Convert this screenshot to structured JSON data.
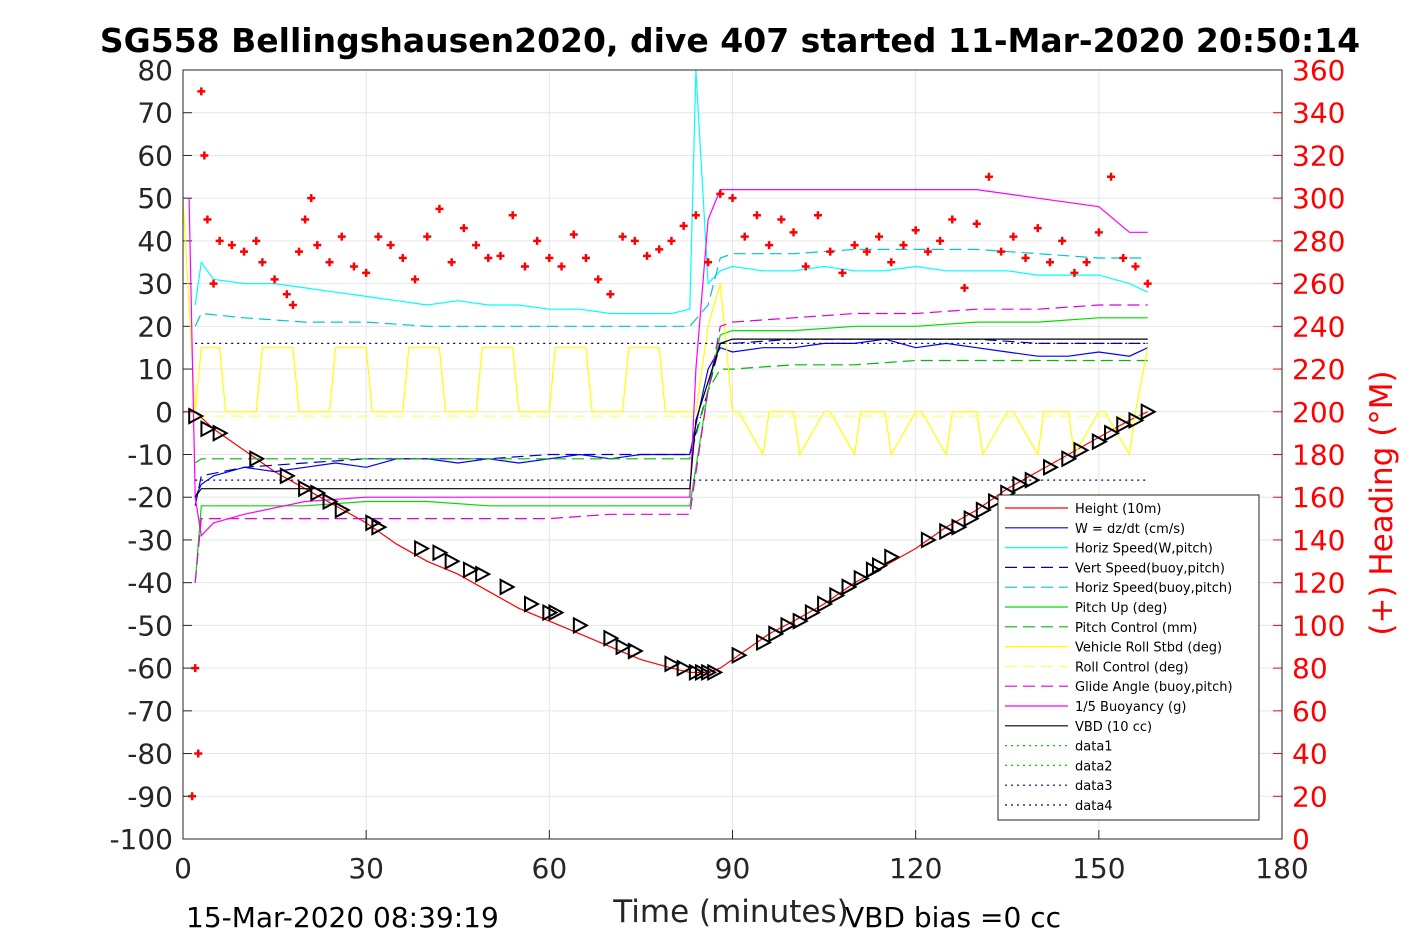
{
  "chart_data": {
    "type": "line",
    "title": "SG558 Bellingshausen2020, dive 407 started 11-Mar-2020 20:50:14",
    "xlabel": "Time (minutes)",
    "ylabel_right": "(+) Heading (°M)",
    "xlim": [
      0,
      180
    ],
    "ylim": [
      -100,
      80
    ],
    "ylim_right": [
      0,
      360
    ],
    "x_ticks": [
      "0",
      "30",
      "60",
      "90",
      "120",
      "150",
      "180"
    ],
    "y_ticks": [
      "80",
      "70",
      "60",
      "50",
      "40",
      "30",
      "20",
      "10",
      "0",
      "-10",
      "-20",
      "-30",
      "-40",
      "-50",
      "-60",
      "-70",
      "-80",
      "-90",
      "-100"
    ],
    "y_ticks_right": [
      "360",
      "340",
      "320",
      "300",
      "280",
      "260",
      "240",
      "220",
      "200",
      "180",
      "160",
      "140",
      "120",
      "100",
      "80",
      "60",
      "40",
      "20",
      "0"
    ],
    "grid": true,
    "legend_position": "lower-right",
    "footer_left": "15-Mar-2020 08:39:19",
    "footer_right": "VBD bias =0 cc",
    "series": [
      {
        "name": "Height (10m)",
        "color": "#ff0000",
        "style": "solid",
        "x": [
          0,
          2,
          5,
          10,
          15,
          20,
          25,
          30,
          35,
          40,
          45,
          50,
          55,
          60,
          65,
          70,
          75,
          80,
          83,
          86,
          88,
          92,
          96,
          100,
          105,
          110,
          115,
          120,
          125,
          130,
          135,
          140,
          145,
          150,
          155,
          158
        ],
        "y": [
          0,
          0,
          -4,
          -9,
          -14,
          -18,
          -22,
          -26,
          -31,
          -35,
          -38,
          -42,
          -46,
          -49,
          -52,
          -55,
          -58,
          -60,
          -61,
          -61,
          -60,
          -56,
          -52,
          -49,
          -45,
          -40,
          -36,
          -32,
          -27,
          -23,
          -18,
          -14,
          -10,
          -6,
          -2,
          0
        ]
      },
      {
        "name": "W = dz/dt (cm/s)",
        "color": "#0000ff",
        "style": "solid",
        "x": [
          2,
          3,
          5,
          10,
          15,
          20,
          25,
          30,
          35,
          40,
          45,
          50,
          55,
          60,
          65,
          70,
          75,
          80,
          83,
          84,
          86,
          88,
          90,
          95,
          100,
          105,
          110,
          115,
          120,
          125,
          130,
          135,
          140,
          145,
          150,
          155,
          158
        ],
        "y": [
          -20,
          -17,
          -15,
          -13,
          -14,
          -13,
          -12,
          -13,
          -11,
          -11,
          -12,
          -11,
          -12,
          -11,
          -10,
          -11,
          -10,
          -10,
          -10,
          -3,
          10,
          15,
          14,
          15,
          15,
          16,
          16,
          17,
          15,
          16,
          15,
          14,
          13,
          13,
          14,
          13,
          15
        ]
      },
      {
        "name": "Horiz Speed(W,pitch)",
        "color": "#00ffff",
        "style": "solid",
        "x": [
          2,
          3,
          5,
          10,
          15,
          20,
          25,
          30,
          35,
          40,
          45,
          50,
          55,
          60,
          65,
          70,
          75,
          80,
          83,
          84,
          86,
          88,
          90,
          95,
          100,
          105,
          110,
          115,
          120,
          125,
          130,
          135,
          140,
          145,
          150,
          155,
          158
        ],
        "y": [
          25,
          35,
          31,
          30,
          30,
          29,
          28,
          27,
          26,
          25,
          26,
          25,
          25,
          24,
          24,
          23,
          23,
          23,
          24,
          80,
          30,
          33,
          34,
          33,
          33,
          34,
          33,
          33,
          34,
          33,
          33,
          33,
          32,
          32,
          32,
          30,
          28
        ]
      },
      {
        "name": "Vert Speed(buoy,pitch)",
        "color": "#0000c0",
        "style": "dashed",
        "x": [
          2,
          3,
          10,
          20,
          30,
          40,
          50,
          60,
          70,
          80,
          83,
          86,
          88,
          90,
          100,
          110,
          120,
          130,
          140,
          150,
          158
        ],
        "y": [
          -22,
          -15,
          -13,
          -12,
          -11,
          -11,
          -11,
          -10,
          -10,
          -10,
          -10,
          5,
          16,
          16,
          17,
          17,
          17,
          17,
          16,
          16,
          16
        ]
      },
      {
        "name": "Horiz Speed(buoy,pitch)",
        "color": "#00c8c8",
        "style": "dashed",
        "x": [
          2,
          3,
          10,
          20,
          30,
          40,
          50,
          60,
          70,
          80,
          83,
          86,
          88,
          90,
          100,
          110,
          120,
          130,
          140,
          150,
          158
        ],
        "y": [
          20,
          23,
          22,
          21,
          21,
          20,
          20,
          20,
          20,
          20,
          20,
          25,
          36,
          37,
          37,
          38,
          38,
          38,
          37,
          36,
          36
        ]
      },
      {
        "name": "Pitch Up (deg)",
        "color": "#00dd00",
        "style": "solid",
        "x": [
          2,
          3,
          10,
          20,
          30,
          40,
          50,
          60,
          70,
          80,
          83,
          86,
          88,
          90,
          100,
          110,
          120,
          130,
          140,
          150,
          158
        ],
        "y": [
          -40,
          -22,
          -22,
          -22,
          -21,
          -21,
          -22,
          -22,
          -22,
          -22,
          -22,
          5,
          18,
          19,
          19,
          20,
          20,
          21,
          21,
          22,
          22
        ]
      },
      {
        "name": "Pitch Control (mm)",
        "color": "#00bb00",
        "style": "dashed",
        "x": [
          2,
          3,
          10,
          20,
          30,
          40,
          50,
          60,
          70,
          80,
          83,
          86,
          88,
          90,
          100,
          110,
          120,
          130,
          140,
          150,
          158
        ],
        "y": [
          -12,
          -11,
          -11,
          -11,
          -11,
          -11,
          -11,
          -11,
          -11,
          -11,
          -11,
          5,
          10,
          10,
          11,
          11,
          12,
          12,
          12,
          12,
          12
        ]
      },
      {
        "name": "Vehicle Roll Stbd (deg)",
        "color": "#ffff00",
        "style": "solid",
        "x": [
          0,
          2,
          3,
          6,
          7,
          12,
          13,
          18,
          19,
          24,
          25,
          30,
          31,
          36,
          37,
          42,
          43,
          48,
          49,
          54,
          55,
          60,
          61,
          66,
          67,
          72,
          73,
          78,
          79,
          84,
          86,
          88,
          90,
          91,
          95,
          96,
          100,
          101,
          105,
          106,
          110,
          111,
          115,
          116,
          120,
          121,
          125,
          126,
          130,
          131,
          135,
          136,
          140,
          141,
          145,
          146,
          150,
          151,
          155,
          156,
          158
        ],
        "y": [
          50,
          0,
          15,
          15,
          0,
          0,
          15,
          15,
          0,
          0,
          15,
          15,
          0,
          0,
          15,
          15,
          0,
          0,
          15,
          15,
          0,
          0,
          15,
          15,
          0,
          0,
          15,
          15,
          0,
          0,
          20,
          30,
          0,
          0,
          -10,
          0,
          0,
          -10,
          0,
          0,
          -10,
          0,
          0,
          -10,
          0,
          0,
          -10,
          0,
          0,
          -10,
          0,
          0,
          -10,
          0,
          0,
          -10,
          0,
          0,
          -10,
          0,
          15
        ]
      },
      {
        "name": "Roll Control (deg)",
        "color": "#ffff66",
        "style": "dashed",
        "x": [
          2,
          10,
          20,
          30,
          40,
          50,
          60,
          70,
          80,
          83,
          88,
          100,
          110,
          120,
          130,
          140,
          150,
          158
        ],
        "y": [
          -1,
          -1,
          -1,
          -1,
          -1,
          -1,
          -1,
          -1,
          -1,
          -1,
          -1,
          -1,
          -1,
          -1,
          -1,
          -1,
          -1,
          -1
        ]
      },
      {
        "name": "Glide Angle (buoy,pitch)",
        "color": "#dd00dd",
        "style": "dashed",
        "x": [
          2,
          3,
          10,
          20,
          30,
          40,
          50,
          60,
          70,
          80,
          83,
          86,
          88,
          90,
          100,
          110,
          120,
          130,
          140,
          150,
          158
        ],
        "y": [
          -40,
          -25,
          -25,
          -25,
          -25,
          -25,
          -25,
          -25,
          -24,
          -24,
          -24,
          5,
          20,
          21,
          22,
          23,
          23,
          24,
          24,
          25,
          25
        ]
      },
      {
        "name": "1/5 Buoyancy (g)",
        "color": "#ff00ff",
        "style": "solid",
        "x": [
          1,
          2,
          3,
          5,
          10,
          20,
          30,
          40,
          50,
          60,
          70,
          80,
          83,
          84,
          86,
          88,
          90,
          100,
          110,
          120,
          130,
          140,
          150,
          155,
          158
        ],
        "y": [
          50,
          -20,
          -29,
          -26,
          -24,
          -21,
          -20,
          -20,
          -20,
          -20,
          -20,
          -20,
          -20,
          10,
          45,
          52,
          52,
          52,
          52,
          52,
          52,
          50,
          48,
          42,
          42
        ]
      },
      {
        "name": "VBD (10 cc)",
        "color": "#000000",
        "style": "solid",
        "x": [
          2,
          3,
          10,
          20,
          30,
          40,
          50,
          60,
          70,
          80,
          83,
          84,
          88,
          90,
          100,
          110,
          120,
          130,
          140,
          150,
          158
        ],
        "y": [
          -20,
          -18,
          -18,
          -18,
          -18,
          -18,
          -18,
          -18,
          -18,
          -18,
          -18,
          -2,
          16,
          17,
          17,
          17,
          17,
          17,
          17,
          17,
          17
        ]
      },
      {
        "name": "data1",
        "color": "#00cc00",
        "style": "dotted",
        "x": [],
        "y": []
      },
      {
        "name": "data2",
        "color": "#00cc00",
        "style": "dotted",
        "x": [],
        "y": []
      },
      {
        "name": "data3",
        "color": "#00008b",
        "style": "dotted",
        "x": [
          2,
          158
        ],
        "y": [
          16,
          16
        ]
      },
      {
        "name": "data4",
        "color": "#00008b",
        "style": "dotted",
        "x": [
          2,
          158
        ],
        "y": [
          -16,
          -16
        ]
      }
    ],
    "heading": {
      "color": "#ff0000",
      "marker": "+",
      "axis": "right",
      "x": [
        1.5,
        2,
        2.5,
        3,
        3.5,
        4,
        5,
        6,
        8,
        10,
        12,
        13,
        15,
        17,
        18,
        19,
        20,
        21,
        22,
        24,
        26,
        28,
        30,
        32,
        34,
        36,
        38,
        40,
        42,
        44,
        46,
        48,
        50,
        52,
        54,
        56,
        58,
        60,
        62,
        64,
        66,
        68,
        70,
        72,
        74,
        76,
        78,
        80,
        82,
        84,
        86,
        88,
        90,
        92,
        94,
        96,
        98,
        100,
        102,
        104,
        106,
        108,
        110,
        112,
        114,
        116,
        118,
        120,
        122,
        124,
        126,
        128,
        130,
        132,
        134,
        136,
        138,
        140,
        142,
        144,
        146,
        148,
        150,
        152,
        154,
        156,
        158
      ],
      "y": [
        20,
        80,
        40,
        350,
        320,
        290,
        260,
        280,
        278,
        275,
        280,
        270,
        262,
        255,
        250,
        275,
        290,
        300,
        278,
        270,
        282,
        268,
        265,
        282,
        278,
        272,
        262,
        282,
        295,
        270,
        286,
        278,
        272,
        273,
        292,
        268,
        280,
        272,
        268,
        283,
        272,
        262,
        255,
        282,
        280,
        273,
        276,
        280,
        287,
        292,
        270,
        302,
        300,
        282,
        292,
        278,
        290,
        284,
        268,
        292,
        275,
        265,
        278,
        275,
        282,
        270,
        278,
        285,
        275,
        280,
        290,
        258,
        288,
        310,
        275,
        282,
        272,
        286,
        270,
        280,
        265,
        270,
        284,
        310,
        272,
        268,
        260
      ]
    },
    "depth_markers": {
      "color": "#000000",
      "marker": "triangle",
      "x": [
        2,
        4,
        6,
        12,
        17,
        20,
        22,
        24,
        26,
        31,
        32,
        39,
        42,
        44,
        47,
        49,
        53,
        57,
        60,
        61,
        65,
        70,
        72,
        74,
        80,
        82,
        84,
        85,
        86,
        87,
        91,
        95,
        97,
        99,
        101,
        103,
        105,
        107,
        109,
        111,
        113,
        114,
        116,
        122,
        125,
        127,
        129,
        131,
        133,
        135,
        137,
        139,
        142,
        145,
        147,
        150,
        152,
        154,
        156,
        158
      ],
      "y": [
        -1,
        -4,
        -5,
        -11,
        -15,
        -18,
        -19,
        -21,
        -23,
        -26,
        -27,
        -32,
        -33,
        -35,
        -37,
        -38,
        -41,
        -45,
        -47,
        -47,
        -50,
        -53,
        -55,
        -56,
        -59,
        -60,
        -61,
        -61,
        -61,
        -61,
        -57,
        -54,
        -52,
        -50,
        -49,
        -47,
        -45,
        -43,
        -41,
        -39,
        -37,
        -36,
        -34,
        -30,
        -28,
        -27,
        -25,
        -23,
        -21,
        -19,
        -17,
        -16,
        -13,
        -11,
        -9,
        -7,
        -5,
        -3,
        -2,
        0
      ]
    }
  }
}
